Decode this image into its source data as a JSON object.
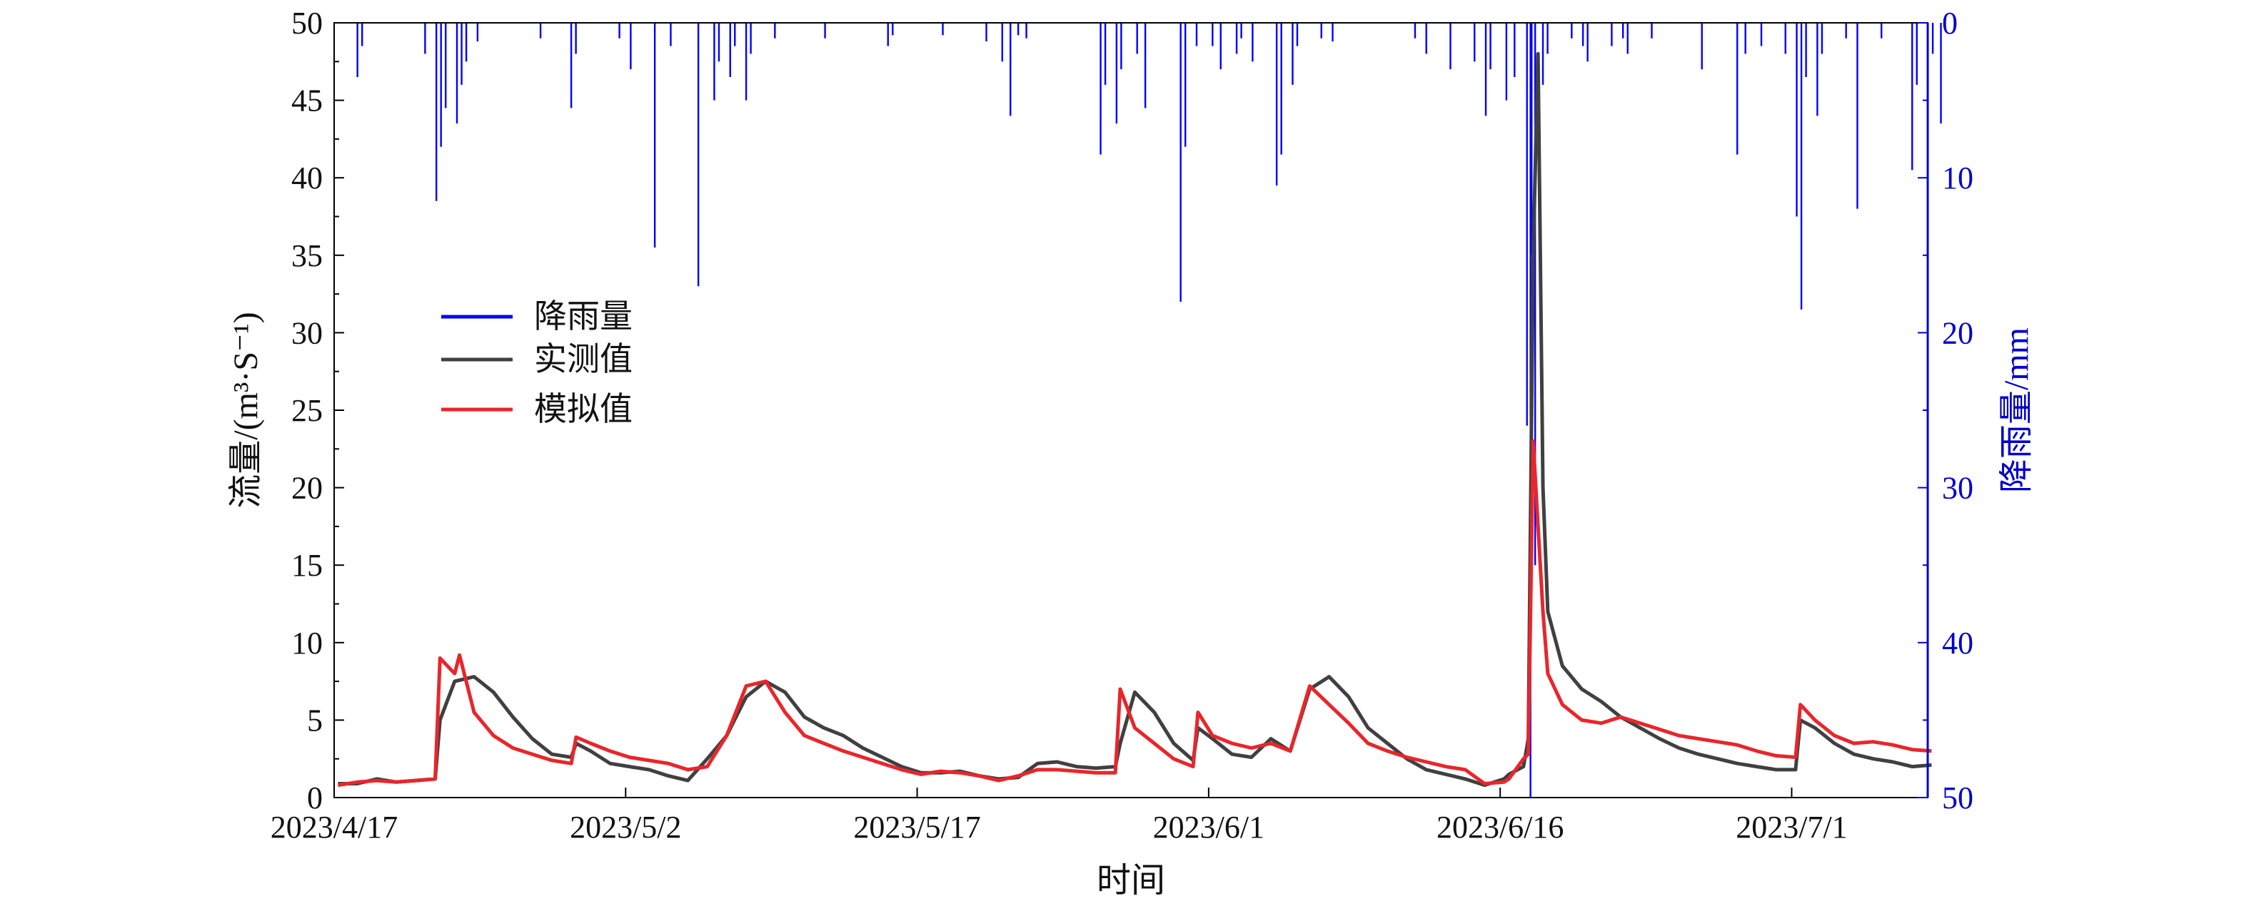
{
  "chart_data": {
    "type": "line",
    "xlabel": "时间",
    "ylabel": "流量/(m³·S⁻¹)",
    "y2label": "降雨量/mm",
    "xlim": [
      "2023-04-17",
      "2023-07-08"
    ],
    "ylim": [
      0,
      50
    ],
    "y2lim": [
      50,
      0
    ],
    "y2_inverted": true,
    "grid": false,
    "legend_position": "left-middle",
    "x_tick_labels": [
      "2023/4/17",
      "2023/5/2",
      "2023/5/17",
      "2023/6/1",
      "2023/6/16",
      "2023/7/1"
    ],
    "y_tick_labels": [
      "0",
      "5",
      "10",
      "15",
      "20",
      "25",
      "30",
      "35",
      "40",
      "45",
      "50"
    ],
    "y2_tick_labels": [
      "0",
      "10",
      "20",
      "30",
      "40",
      "50"
    ],
    "series": [
      {
        "name": "降雨量",
        "type": "bar",
        "axis": "right",
        "color": "#0000ff",
        "points": [
          [
            "2023-04-18",
            3.5
          ],
          [
            "2023-04-18",
            1.5
          ],
          [
            "2023-04-21",
            2.0
          ],
          [
            "2023-04-22",
            11.5
          ],
          [
            "2023-04-22",
            8.0
          ],
          [
            "2023-04-22",
            5.5
          ],
          [
            "2023-04-23",
            6.5
          ],
          [
            "2023-04-23",
            4.0
          ],
          [
            "2023-04-23",
            2.5
          ],
          [
            "2023-04-24",
            1.2
          ],
          [
            "2023-04-27",
            1.0
          ],
          [
            "2023-04-29",
            5.5
          ],
          [
            "2023-04-29",
            2.0
          ],
          [
            "2023-05-01",
            1.0
          ],
          [
            "2023-05-02",
            3.0
          ],
          [
            "2023-05-03",
            14.5
          ],
          [
            "2023-05-05",
            17.0
          ],
          [
            "2023-05-04",
            1.5
          ],
          [
            "2023-05-06",
            5.0
          ],
          [
            "2023-05-06",
            2.5
          ],
          [
            "2023-05-07",
            3.5
          ],
          [
            "2023-05-07",
            1.5
          ],
          [
            "2023-05-08",
            5.0
          ],
          [
            "2023-05-08",
            2.0
          ],
          [
            "2023-05-09",
            1.0
          ],
          [
            "2023-05-12",
            1.0
          ],
          [
            "2023-05-15",
            1.5
          ],
          [
            "2023-05-15",
            0.8
          ],
          [
            "2023-05-18",
            0.8
          ],
          [
            "2023-05-20",
            1.2
          ],
          [
            "2023-05-21",
            6.0
          ],
          [
            "2023-05-21",
            2.5
          ],
          [
            "2023-05-22",
            1.0
          ],
          [
            "2023-05-22",
            0.8
          ],
          [
            "2023-05-26",
            8.5
          ],
          [
            "2023-05-26",
            4.0
          ],
          [
            "2023-05-27",
            6.5
          ],
          [
            "2023-05-27",
            3.0
          ],
          [
            "2023-05-28",
            5.5
          ],
          [
            "2023-05-28",
            2.0
          ],
          [
            "2023-05-30",
            18.0
          ],
          [
            "2023-05-30",
            8.0
          ],
          [
            "2023-05-31",
            1.5
          ],
          [
            "2023-06-01",
            3.0
          ],
          [
            "2023-06-01",
            1.5
          ],
          [
            "2023-06-02",
            2.0
          ],
          [
            "2023-06-02",
            1.0
          ],
          [
            "2023-06-03",
            2.5
          ],
          [
            "2023-06-04",
            10.5
          ],
          [
            "2023-06-04",
            8.5
          ],
          [
            "2023-06-05",
            4.0
          ],
          [
            "2023-06-05",
            1.5
          ],
          [
            "2023-06-06",
            1.0
          ],
          [
            "2023-06-07",
            1.2
          ],
          [
            "2023-06-11",
            1.0
          ],
          [
            "2023-06-12",
            2.0
          ],
          [
            "2023-06-13",
            3.0
          ],
          [
            "2023-06-14",
            2.5
          ],
          [
            "2023-06-15",
            6.0
          ],
          [
            "2023-06-15",
            3.0
          ],
          [
            "2023-06-16",
            3.5
          ],
          [
            "2023-06-16",
            5.0
          ],
          [
            "2023-06-17",
            50.0
          ],
          [
            "2023-06-17",
            35.0
          ],
          [
            "2023-06-17",
            26.0
          ],
          [
            "2023-06-17",
            15.0
          ],
          [
            "2023-06-18",
            4.0
          ],
          [
            "2023-06-18",
            2.0
          ],
          [
            "2023-06-19",
            1.0
          ],
          [
            "2023-06-20",
            1.5
          ],
          [
            "2023-06-20",
            2.5
          ],
          [
            "2023-06-21",
            1.5
          ],
          [
            "2023-06-22",
            1.0
          ],
          [
            "2023-06-22",
            2.0
          ],
          [
            "2023-06-23",
            1.0
          ],
          [
            "2023-06-26",
            3.0
          ],
          [
            "2023-06-28",
            2.0
          ],
          [
            "2023-06-28",
            8.5
          ],
          [
            "2023-06-29",
            1.5
          ],
          [
            "2023-06-30",
            2.0
          ],
          [
            "2023-07-01",
            12.5
          ],
          [
            "2023-07-01",
            18.5
          ],
          [
            "2023-07-01",
            3.5
          ],
          [
            "2023-07-02",
            6.0
          ],
          [
            "2023-07-02",
            2.0
          ],
          [
            "2023-07-03",
            1.0
          ],
          [
            "2023-07-04",
            12.0
          ],
          [
            "2023-07-05",
            1.0
          ],
          [
            "2023-07-07",
            9.5
          ],
          [
            "2023-07-07",
            4.0
          ],
          [
            "2023-07-08",
            6.5
          ],
          [
            "2023-07-08",
            2.0
          ]
        ]
      },
      {
        "name": "实测值",
        "type": "line",
        "axis": "left",
        "color": "#404040",
        "points": [
          [
            "2023-04-17",
            0.9
          ],
          [
            "2023-04-18",
            0.9
          ],
          [
            "2023-04-19",
            1.2
          ],
          [
            "2023-04-20",
            1.0
          ],
          [
            "2023-04-21",
            1.1
          ],
          [
            "2023-04-22",
            1.2
          ],
          [
            "2023-04-22",
            5.0
          ],
          [
            "2023-04-23",
            7.5
          ],
          [
            "2023-04-24",
            7.8
          ],
          [
            "2023-04-25",
            6.8
          ],
          [
            "2023-04-26",
            5.2
          ],
          [
            "2023-04-27",
            3.8
          ],
          [
            "2023-04-28",
            2.8
          ],
          [
            "2023-04-29",
            2.6
          ],
          [
            "2023-04-29",
            3.5
          ],
          [
            "2023-04-30",
            3.0
          ],
          [
            "2023-05-01",
            2.2
          ],
          [
            "2023-05-02",
            2.0
          ],
          [
            "2023-05-03",
            1.8
          ],
          [
            "2023-05-04",
            1.4
          ],
          [
            "2023-05-05",
            1.1
          ],
          [
            "2023-05-06",
            2.5
          ],
          [
            "2023-05-07",
            4.0
          ],
          [
            "2023-05-08",
            6.5
          ],
          [
            "2023-05-09",
            7.5
          ],
          [
            "2023-05-10",
            6.8
          ],
          [
            "2023-05-11",
            5.2
          ],
          [
            "2023-05-12",
            4.5
          ],
          [
            "2023-05-13",
            4.0
          ],
          [
            "2023-05-14",
            3.2
          ],
          [
            "2023-05-15",
            2.6
          ],
          [
            "2023-05-16",
            2.0
          ],
          [
            "2023-05-17",
            1.6
          ],
          [
            "2023-05-18",
            1.6
          ],
          [
            "2023-05-19",
            1.7
          ],
          [
            "2023-05-20",
            1.4
          ],
          [
            "2023-05-21",
            1.2
          ],
          [
            "2023-05-22",
            1.3
          ],
          [
            "2023-05-23",
            2.2
          ],
          [
            "2023-05-24",
            2.3
          ],
          [
            "2023-05-25",
            2.0
          ],
          [
            "2023-05-26",
            1.9
          ],
          [
            "2023-05-27",
            2.0
          ],
          [
            "2023-05-27",
            3.5
          ],
          [
            "2023-05-28",
            6.8
          ],
          [
            "2023-05-29",
            5.5
          ],
          [
            "2023-05-30",
            3.5
          ],
          [
            "2023-05-31",
            2.4
          ],
          [
            "2023-05-31",
            4.5
          ],
          [
            "2023-06-01",
            3.8
          ],
          [
            "2023-06-02",
            2.8
          ],
          [
            "2023-06-03",
            2.6
          ],
          [
            "2023-06-04",
            3.8
          ],
          [
            "2023-06-05",
            3.0
          ],
          [
            "2023-06-06",
            7.0
          ],
          [
            "2023-06-07",
            7.8
          ],
          [
            "2023-06-08",
            6.5
          ],
          [
            "2023-06-09",
            4.5
          ],
          [
            "2023-06-10",
            3.5
          ],
          [
            "2023-06-11",
            2.5
          ],
          [
            "2023-06-12",
            1.8
          ],
          [
            "2023-06-13",
            1.5
          ],
          [
            "2023-06-14",
            1.2
          ],
          [
            "2023-06-15",
            0.8
          ],
          [
            "2023-06-16",
            1.2
          ],
          [
            "2023-06-16",
            1.5
          ],
          [
            "2023-06-17",
            2.0
          ],
          [
            "2023-06-17",
            3.8
          ],
          [
            "2023-06-17",
            35.0
          ],
          [
            "2023-06-17",
            48.0
          ],
          [
            "2023-06-18",
            20.0
          ],
          [
            "2023-06-18",
            12.0
          ],
          [
            "2023-06-19",
            8.5
          ],
          [
            "2023-06-20",
            7.0
          ],
          [
            "2023-06-21",
            6.2
          ],
          [
            "2023-06-22",
            5.2
          ],
          [
            "2023-06-23",
            4.5
          ],
          [
            "2023-06-24",
            3.8
          ],
          [
            "2023-06-25",
            3.2
          ],
          [
            "2023-06-26",
            2.8
          ],
          [
            "2023-06-27",
            2.5
          ],
          [
            "2023-06-28",
            2.2
          ],
          [
            "2023-06-29",
            2.0
          ],
          [
            "2023-06-30",
            1.8
          ],
          [
            "2023-07-01",
            1.8
          ],
          [
            "2023-07-01",
            5.0
          ],
          [
            "2023-07-02",
            4.5
          ],
          [
            "2023-07-03",
            3.5
          ],
          [
            "2023-07-04",
            2.8
          ],
          [
            "2023-07-05",
            2.5
          ],
          [
            "2023-07-06",
            2.3
          ],
          [
            "2023-07-07",
            2.0
          ],
          [
            "2023-07-08",
            2.1
          ]
        ]
      },
      {
        "name": "模拟值",
        "type": "line",
        "axis": "left",
        "color": "#e8262b",
        "points": [
          [
            "2023-04-17",
            0.8
          ],
          [
            "2023-04-18",
            1.0
          ],
          [
            "2023-04-19",
            1.1
          ],
          [
            "2023-04-20",
            1.0
          ],
          [
            "2023-04-21",
            1.1
          ],
          [
            "2023-04-22",
            1.2
          ],
          [
            "2023-04-22",
            9.0
          ],
          [
            "2023-04-23",
            8.0
          ],
          [
            "2023-04-23",
            9.2
          ],
          [
            "2023-04-24",
            5.5
          ],
          [
            "2023-04-25",
            4.0
          ],
          [
            "2023-04-26",
            3.2
          ],
          [
            "2023-04-27",
            2.8
          ],
          [
            "2023-04-28",
            2.4
          ],
          [
            "2023-04-29",
            2.2
          ],
          [
            "2023-04-29",
            3.9
          ],
          [
            "2023-04-30",
            3.5
          ],
          [
            "2023-05-01",
            3.0
          ],
          [
            "2023-05-02",
            2.6
          ],
          [
            "2023-05-03",
            2.4
          ],
          [
            "2023-05-04",
            2.2
          ],
          [
            "2023-05-05",
            1.8
          ],
          [
            "2023-05-06",
            2.0
          ],
          [
            "2023-05-07",
            4.0
          ],
          [
            "2023-05-08",
            7.2
          ],
          [
            "2023-05-09",
            7.5
          ],
          [
            "2023-05-10",
            5.5
          ],
          [
            "2023-05-11",
            4.0
          ],
          [
            "2023-05-12",
            3.5
          ],
          [
            "2023-05-13",
            3.0
          ],
          [
            "2023-05-14",
            2.6
          ],
          [
            "2023-05-15",
            2.2
          ],
          [
            "2023-05-16",
            1.8
          ],
          [
            "2023-05-17",
            1.5
          ],
          [
            "2023-05-18",
            1.7
          ],
          [
            "2023-05-19",
            1.6
          ],
          [
            "2023-05-20",
            1.4
          ],
          [
            "2023-05-21",
            1.1
          ],
          [
            "2023-05-22",
            1.4
          ],
          [
            "2023-05-23",
            1.8
          ],
          [
            "2023-05-24",
            1.8
          ],
          [
            "2023-05-25",
            1.7
          ],
          [
            "2023-05-26",
            1.6
          ],
          [
            "2023-05-27",
            1.6
          ],
          [
            "2023-05-27",
            7.0
          ],
          [
            "2023-05-28",
            4.5
          ],
          [
            "2023-05-29",
            3.5
          ],
          [
            "2023-05-30",
            2.5
          ],
          [
            "2023-05-31",
            2.0
          ],
          [
            "2023-05-31",
            5.5
          ],
          [
            "2023-06-01",
            4.0
          ],
          [
            "2023-06-02",
            3.5
          ],
          [
            "2023-06-03",
            3.2
          ],
          [
            "2023-06-04",
            3.5
          ],
          [
            "2023-06-05",
            3.0
          ],
          [
            "2023-06-06",
            7.2
          ],
          [
            "2023-06-07",
            6.0
          ],
          [
            "2023-06-08",
            4.8
          ],
          [
            "2023-06-09",
            3.5
          ],
          [
            "2023-06-10",
            3.0
          ],
          [
            "2023-06-11",
            2.6
          ],
          [
            "2023-06-12",
            2.3
          ],
          [
            "2023-06-13",
            2.0
          ],
          [
            "2023-06-14",
            1.8
          ],
          [
            "2023-06-15",
            0.9
          ],
          [
            "2023-06-16",
            1.0
          ],
          [
            "2023-06-16",
            1.2
          ],
          [
            "2023-06-17",
            2.5
          ],
          [
            "2023-06-17",
            2.8
          ],
          [
            "2023-06-17",
            23.0
          ],
          [
            "2023-06-18",
            12.0
          ],
          [
            "2023-06-18",
            8.0
          ],
          [
            "2023-06-19",
            6.0
          ],
          [
            "2023-06-20",
            5.0
          ],
          [
            "2023-06-21",
            4.8
          ],
          [
            "2023-06-22",
            5.2
          ],
          [
            "2023-06-23",
            4.8
          ],
          [
            "2023-06-24",
            4.4
          ],
          [
            "2023-06-25",
            4.0
          ],
          [
            "2023-06-26",
            3.8
          ],
          [
            "2023-06-27",
            3.6
          ],
          [
            "2023-06-28",
            3.4
          ],
          [
            "2023-06-29",
            3.0
          ],
          [
            "2023-06-30",
            2.7
          ],
          [
            "2023-07-01",
            2.6
          ],
          [
            "2023-07-01",
            6.0
          ],
          [
            "2023-07-02",
            5.0
          ],
          [
            "2023-07-03",
            4.0
          ],
          [
            "2023-07-04",
            3.5
          ],
          [
            "2023-07-05",
            3.6
          ],
          [
            "2023-07-06",
            3.4
          ],
          [
            "2023-07-07",
            3.1
          ],
          [
            "2023-07-08",
            3.0
          ]
        ]
      }
    ]
  }
}
